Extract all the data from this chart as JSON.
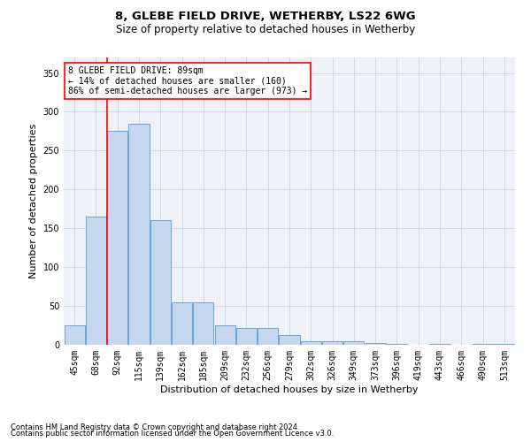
{
  "title1": "8, GLEBE FIELD DRIVE, WETHERBY, LS22 6WG",
  "title2": "Size of property relative to detached houses in Wetherby",
  "xlabel": "Distribution of detached houses by size in Wetherby",
  "ylabel": "Number of detached properties",
  "categories": [
    "45sqm",
    "68sqm",
    "92sqm",
    "115sqm",
    "139sqm",
    "162sqm",
    "185sqm",
    "209sqm",
    "232sqm",
    "256sqm",
    "279sqm",
    "302sqm",
    "326sqm",
    "349sqm",
    "373sqm",
    "396sqm",
    "419sqm",
    "443sqm",
    "466sqm",
    "490sqm",
    "513sqm"
  ],
  "values": [
    25,
    165,
    275,
    285,
    160,
    55,
    55,
    25,
    22,
    22,
    12,
    5,
    5,
    4,
    2,
    1,
    0,
    1,
    0,
    1,
    1
  ],
  "bar_color": "#c5d8f0",
  "bar_edge_color": "#5b9bd5",
  "grid_color": "#d0d8e8",
  "bg_color": "#eef2f8",
  "red_line_x": 1.5,
  "annotation_text": "8 GLEBE FIELD DRIVE: 89sqm\n← 14% of detached houses are smaller (160)\n86% of semi-detached houses are larger (973) →",
  "annotation_box_color": "white",
  "annotation_box_edge": "red",
  "footnote1": "Contains HM Land Registry data © Crown copyright and database right 2024.",
  "footnote2": "Contains public sector information licensed under the Open Government Licence v3.0.",
  "ylim": [
    0,
    370
  ],
  "title_fontsize": 9.5,
  "subtitle_fontsize": 8.5,
  "axis_label_fontsize": 8,
  "tick_fontsize": 7,
  "annotation_fontsize": 7,
  "footnote_fontsize": 6
}
